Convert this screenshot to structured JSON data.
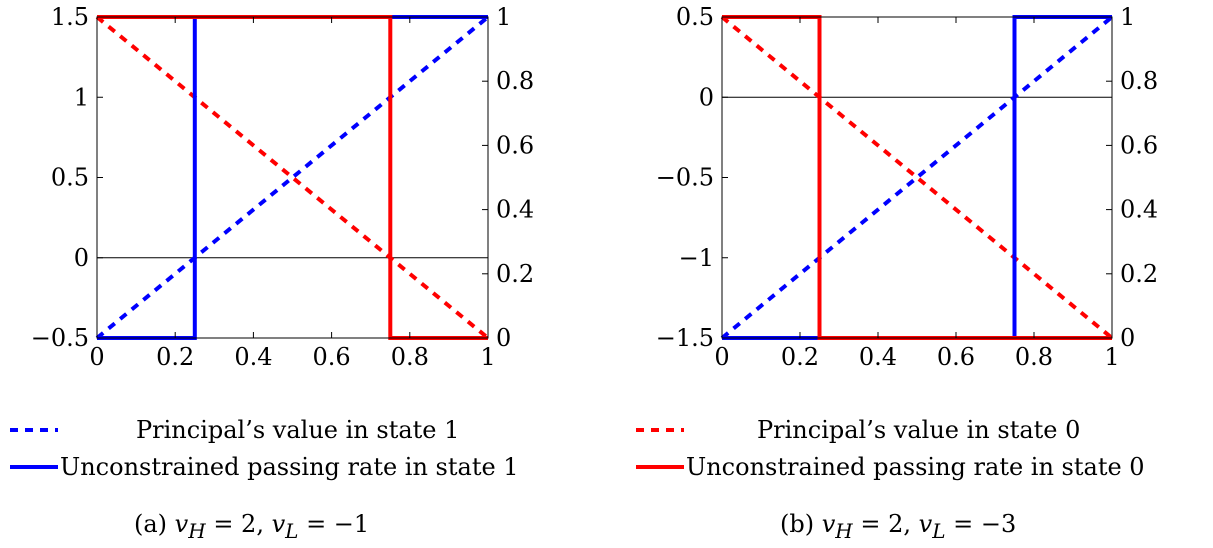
{
  "colors": {
    "blue": "#0000ff",
    "red": "#ff0000",
    "axis": "#000000"
  },
  "legend": [
    {
      "label": "Principal’s value in state 1",
      "color": "#0000ff",
      "style": "dashed"
    },
    {
      "label": "Unconstrained passing rate in state 1",
      "color": "#0000ff",
      "style": "solid"
    },
    {
      "label": "Principal’s value in state 0",
      "color": "#ff0000",
      "style": "dashed"
    },
    {
      "label": "Unconstrained passing rate in state 0",
      "color": "#ff0000",
      "style": "solid"
    }
  ],
  "chart_data": [
    {
      "type": "line",
      "caption": "(a) v_H = 2, v_L = −1",
      "caption_parts": {
        "prefix": "(a) ",
        "var1": "v",
        "sub1": "H",
        "mid": " = 2, ",
        "var2": "v",
        "sub2": "L",
        "suffix": " = −1"
      },
      "xlim": [
        0,
        1
      ],
      "xticks": [
        "0",
        "0.2",
        "0.4",
        "0.6",
        "0.8",
        "1"
      ],
      "xtick_values": [
        0,
        0.2,
        0.4,
        0.6,
        0.8,
        1
      ],
      "ylim_left": [
        -0.5,
        1.5
      ],
      "yticks_left": [
        "−0.5",
        "0",
        "0.5",
        "1",
        "1.5"
      ],
      "ytick_left_values": [
        -0.5,
        0,
        0.5,
        1,
        1.5
      ],
      "ylim_right": [
        0,
        1
      ],
      "yticks_right": [
        "0",
        "0.2",
        "0.4",
        "0.6",
        "0.8",
        "1"
      ],
      "ytick_right_values": [
        0,
        0.2,
        0.4,
        0.6,
        0.8,
        1
      ],
      "zero_line": 0,
      "series": [
        {
          "name": "Principal’s value in state 1",
          "axis": "left",
          "style": "dashed",
          "color": "#0000ff",
          "x": [
            0,
            1
          ],
          "y": [
            -0.5,
            1.5
          ]
        },
        {
          "name": "Principal’s value in state 0",
          "axis": "left",
          "style": "dashed",
          "color": "#ff0000",
          "x": [
            0,
            1
          ],
          "y": [
            1.5,
            -0.5
          ]
        },
        {
          "name": "Unconstrained passing rate in state 1",
          "axis": "right",
          "style": "solid",
          "color": "#0000ff",
          "x": [
            0,
            0.25,
            0.25,
            1
          ],
          "y": [
            0,
            0,
            1,
            1
          ]
        },
        {
          "name": "Unconstrained passing rate in state 0",
          "axis": "right",
          "style": "solid",
          "color": "#ff0000",
          "x": [
            0,
            0.75,
            0.75,
            1
          ],
          "y": [
            1,
            1,
            0,
            0
          ]
        }
      ]
    },
    {
      "type": "line",
      "caption": "(b) v_H = 2, v_L = −3",
      "caption_parts": {
        "prefix": "(b) ",
        "var1": "v",
        "sub1": "H",
        "mid": " = 2, ",
        "var2": "v",
        "sub2": "L",
        "suffix": " = −3"
      },
      "xlim": [
        0,
        1
      ],
      "xticks": [
        "0",
        "0.2",
        "0.4",
        "0.6",
        "0.8",
        "1"
      ],
      "xtick_values": [
        0,
        0.2,
        0.4,
        0.6,
        0.8,
        1
      ],
      "ylim_left": [
        -1.5,
        0.5
      ],
      "yticks_left": [
        "−1.5",
        "−1",
        "−0.5",
        "0",
        "0.5"
      ],
      "ytick_left_values": [
        -1.5,
        -1,
        -0.5,
        0,
        0.5
      ],
      "ylim_right": [
        0,
        1
      ],
      "yticks_right": [
        "0",
        "0.2",
        "0.4",
        "0.6",
        "0.8",
        "1"
      ],
      "ytick_right_values": [
        0,
        0.2,
        0.4,
        0.6,
        0.8,
        1
      ],
      "zero_line": 0,
      "series": [
        {
          "name": "Principal’s value in state 1",
          "axis": "left",
          "style": "dashed",
          "color": "#0000ff",
          "x": [
            0,
            1
          ],
          "y": [
            -1.5,
            0.5
          ]
        },
        {
          "name": "Principal’s value in state 0",
          "axis": "left",
          "style": "dashed",
          "color": "#ff0000",
          "x": [
            0,
            1
          ],
          "y": [
            0.5,
            -1.5
          ]
        },
        {
          "name": "Unconstrained passing rate in state 1",
          "axis": "right",
          "style": "solid",
          "color": "#0000ff",
          "x": [
            0,
            0.75,
            0.75,
            1
          ],
          "y": [
            0,
            0,
            1,
            1
          ]
        },
        {
          "name": "Unconstrained passing rate in state 0",
          "axis": "right",
          "style": "solid",
          "color": "#ff0000",
          "x": [
            0,
            0.25,
            0.25,
            1
          ],
          "y": [
            1,
            1,
            0,
            0
          ]
        }
      ]
    }
  ]
}
